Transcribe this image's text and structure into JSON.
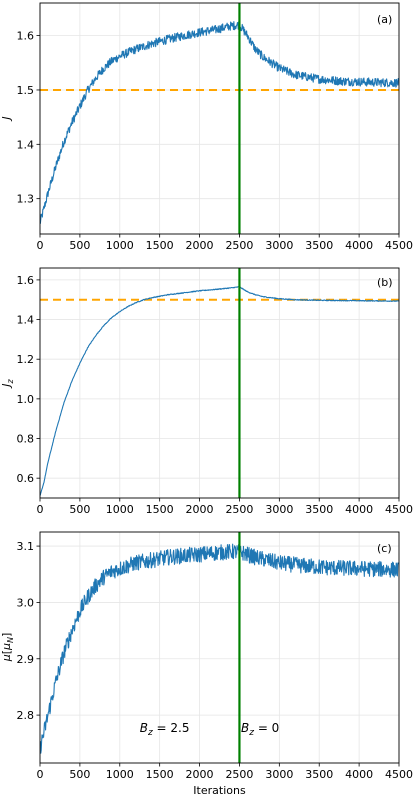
{
  "chart_data": [
    {
      "type": "line",
      "panel_label": "(a)",
      "ylabel": "J",
      "xlim": [
        0,
        4500
      ],
      "ylim": [
        1.235,
        1.66
      ],
      "xticks": [
        0,
        500,
        1000,
        1500,
        2000,
        2500,
        3000,
        3500,
        4000,
        4500
      ],
      "yticks": [
        1.3,
        1.4,
        1.5,
        1.6
      ],
      "ytick_labels": [
        "1.3",
        "1.4",
        "1.5",
        "1.6"
      ],
      "grid": true,
      "series_color": "#1f77b4",
      "noise_amplitude": 0.008,
      "series": [
        {
          "x": [
            0,
            100,
            200,
            300,
            400,
            500,
            600,
            700,
            800,
            900,
            1000,
            1200,
            1400,
            1600,
            1800,
            2000,
            2200,
            2400,
            2500,
            2600,
            2700,
            2800,
            3000,
            3200,
            3500,
            3800,
            4000,
            4200,
            4500
          ],
          "y": [
            1.255,
            1.31,
            1.36,
            1.405,
            1.44,
            1.47,
            1.5,
            1.522,
            1.54,
            1.553,
            1.562,
            1.575,
            1.585,
            1.593,
            1.6,
            1.606,
            1.611,
            1.618,
            1.62,
            1.6,
            1.575,
            1.56,
            1.54,
            1.528,
            1.52,
            1.516,
            1.515,
            1.514,
            1.513
          ]
        }
      ],
      "hlines": [
        {
          "y": 1.5,
          "color": "#ffa500",
          "style": "dashed"
        }
      ],
      "vlines": [
        {
          "x": 2500,
          "color": "#008000"
        }
      ]
    },
    {
      "type": "line",
      "panel_label": "(b)",
      "ylabel": "J_z",
      "xlim": [
        0,
        4500
      ],
      "ylim": [
        0.5,
        1.66
      ],
      "xticks": [
        0,
        500,
        1000,
        1500,
        2000,
        2500,
        3000,
        3500,
        4000,
        4500
      ],
      "yticks": [
        0.6,
        0.8,
        1.0,
        1.2,
        1.4,
        1.6
      ],
      "ytick_labels": [
        "0.6",
        "0.8",
        "1.0",
        "1.2",
        "1.4",
        "1.6"
      ],
      "grid": true,
      "series_color": "#1f77b4",
      "noise_amplitude": 0.002,
      "series": [
        {
          "x": [
            0,
            50,
            100,
            200,
            300,
            400,
            500,
            600,
            700,
            800,
            900,
            1000,
            1100,
            1200,
            1300,
            1400,
            1600,
            1800,
            2000,
            2200,
            2400,
            2500,
            2600,
            2700,
            2800,
            3000,
            3200,
            3500,
            4000,
            4500
          ],
          "y": [
            0.51,
            0.58,
            0.68,
            0.84,
            0.98,
            1.09,
            1.18,
            1.26,
            1.32,
            1.37,
            1.41,
            1.44,
            1.465,
            1.485,
            1.5,
            1.51,
            1.525,
            1.535,
            1.545,
            1.552,
            1.56,
            1.565,
            1.54,
            1.525,
            1.515,
            1.505,
            1.5,
            1.497,
            1.495,
            1.493
          ]
        }
      ],
      "hlines": [
        {
          "y": 1.5,
          "color": "#ffa500",
          "style": "dashed"
        }
      ],
      "vlines": [
        {
          "x": 2500,
          "color": "#008000"
        }
      ]
    },
    {
      "type": "line",
      "panel_label": "(c)",
      "ylabel": "μ[μ_N]",
      "xlabel": "Iterations",
      "xlim": [
        0,
        4500
      ],
      "ylim": [
        2.715,
        3.125
      ],
      "xticks": [
        0,
        500,
        1000,
        1500,
        2000,
        2500,
        3000,
        3500,
        4000,
        4500
      ],
      "yticks": [
        2.8,
        2.9,
        3.0,
        3.1
      ],
      "ytick_labels": [
        "2.8",
        "2.9",
        "3.0",
        "3.1"
      ],
      "grid": true,
      "series_color": "#1f77b4",
      "noise_amplitude": 0.014,
      "series": [
        {
          "x": [
            0,
            100,
            200,
            300,
            400,
            500,
            600,
            700,
            800,
            900,
            1000,
            1200,
            1400,
            1600,
            1800,
            2000,
            2200,
            2400,
            2500,
            2700,
            3000,
            3300,
            3600,
            4000,
            4500
          ],
          "y": [
            2.74,
            2.8,
            2.86,
            2.91,
            2.95,
            2.985,
            3.01,
            3.03,
            3.045,
            3.055,
            3.06,
            3.07,
            3.075,
            3.08,
            3.083,
            3.085,
            3.088,
            3.09,
            3.09,
            3.08,
            3.07,
            3.065,
            3.062,
            3.06,
            3.058
          ]
        }
      ],
      "vlines": [
        {
          "x": 2500,
          "color": "#008000"
        }
      ],
      "annotations": [
        {
          "base": "B",
          "sub": "z",
          "text": " = 2.5",
          "x": 1250,
          "y": 2.77,
          "anchor": "start"
        },
        {
          "base": "B",
          "sub": "z",
          "text": " = 0",
          "x": 2520,
          "y": 2.77,
          "anchor": "start"
        }
      ]
    }
  ]
}
